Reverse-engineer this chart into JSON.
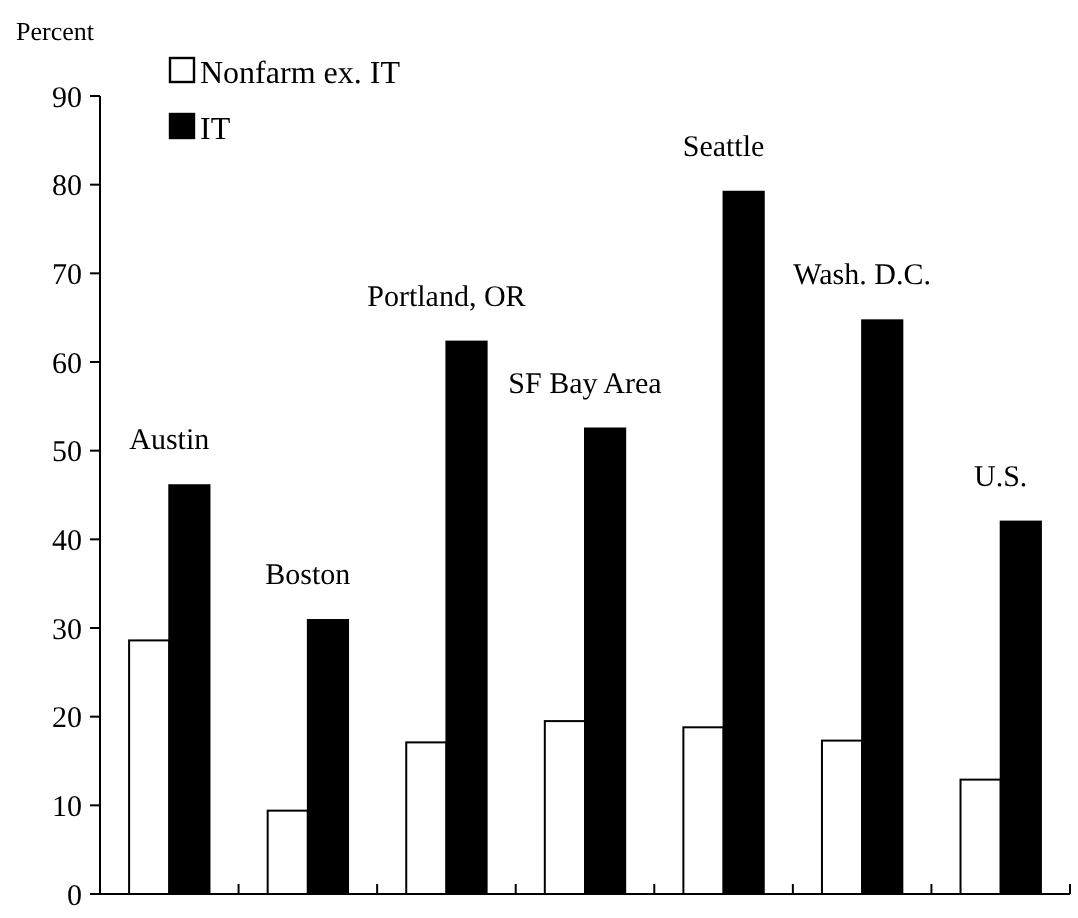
{
  "chart_data": {
    "type": "bar",
    "ylabel": "Percent",
    "categories": [
      "Austin",
      "Boston",
      "Portland, OR",
      "SF Bay Area",
      "Seattle",
      "Wash. D.C.",
      "U.S."
    ],
    "series": [
      {
        "name": "Nonfarm ex. IT",
        "color": "#ffffff",
        "values": [
          28.6,
          9.4,
          17.1,
          19.5,
          18.8,
          17.3,
          12.9
        ]
      },
      {
        "name": "IT",
        "color": "#000000",
        "values": [
          46.1,
          30.9,
          62.3,
          52.5,
          79.2,
          64.7,
          42.0
        ]
      }
    ],
    "ylim": [
      0,
      90
    ],
    "yticks": [
      0,
      10,
      20,
      30,
      40,
      50,
      60,
      70,
      80,
      90
    ],
    "legend": "top left",
    "grid": false
  }
}
